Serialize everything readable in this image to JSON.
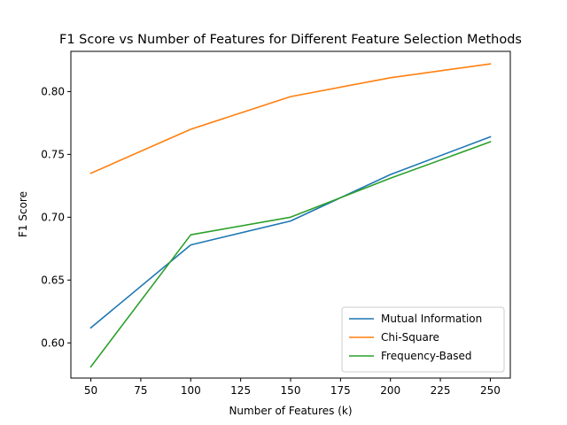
{
  "chart_data": {
    "type": "line",
    "title": "F1 Score vs Number of Features for Different Feature Selection Methods",
    "xlabel": "Number of Features (k)",
    "ylabel": "F1 Score",
    "x": [
      50,
      100,
      150,
      200,
      250
    ],
    "xlim": [
      40,
      260
    ],
    "ylim": [
      0.572,
      0.832
    ],
    "xticks": [
      50,
      75,
      100,
      125,
      150,
      175,
      200,
      225,
      250
    ],
    "yticks": [
      0.6,
      0.65,
      0.7,
      0.75,
      0.8
    ],
    "grid": false,
    "legend_position": "lower-right",
    "series": [
      {
        "name": "Mutual Information",
        "color": "#1f77b4",
        "values": [
          0.612,
          0.678,
          0.697,
          0.734,
          0.764
        ]
      },
      {
        "name": "Chi-Square",
        "color": "#ff7f0e",
        "values": [
          0.735,
          0.77,
          0.796,
          0.811,
          0.822
        ]
      },
      {
        "name": "Frequency-Based",
        "color": "#2ca02c",
        "values": [
          0.581,
          0.686,
          0.7,
          0.731,
          0.76
        ]
      }
    ]
  }
}
